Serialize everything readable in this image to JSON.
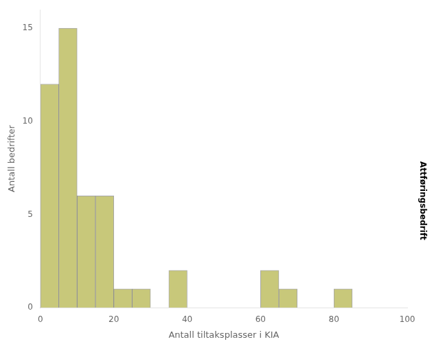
{
  "chart_data": {
    "type": "histogram",
    "bins": [
      0,
      5,
      10,
      15,
      20,
      25,
      30,
      35,
      40,
      45,
      50,
      55,
      60,
      65,
      70,
      75,
      80,
      85
    ],
    "values": [
      12,
      15,
      6,
      6,
      1,
      1,
      0,
      2,
      0,
      0,
      0,
      0,
      2,
      1,
      0,
      0,
      1
    ],
    "color": "#c8c87a",
    "xlabel": "Antall tiltaksplasser i KIA",
    "ylabel": "Antall bedrifter",
    "annotations": [
      "Attføringsbedrift"
    ],
    "xlim": [
      0,
      100
    ],
    "xticks": [
      0,
      20,
      40,
      60,
      80,
      100
    ],
    "ylim": [
      0,
      16
    ],
    "yticks": [
      0,
      5,
      10,
      15
    ],
    "grid": false
  }
}
